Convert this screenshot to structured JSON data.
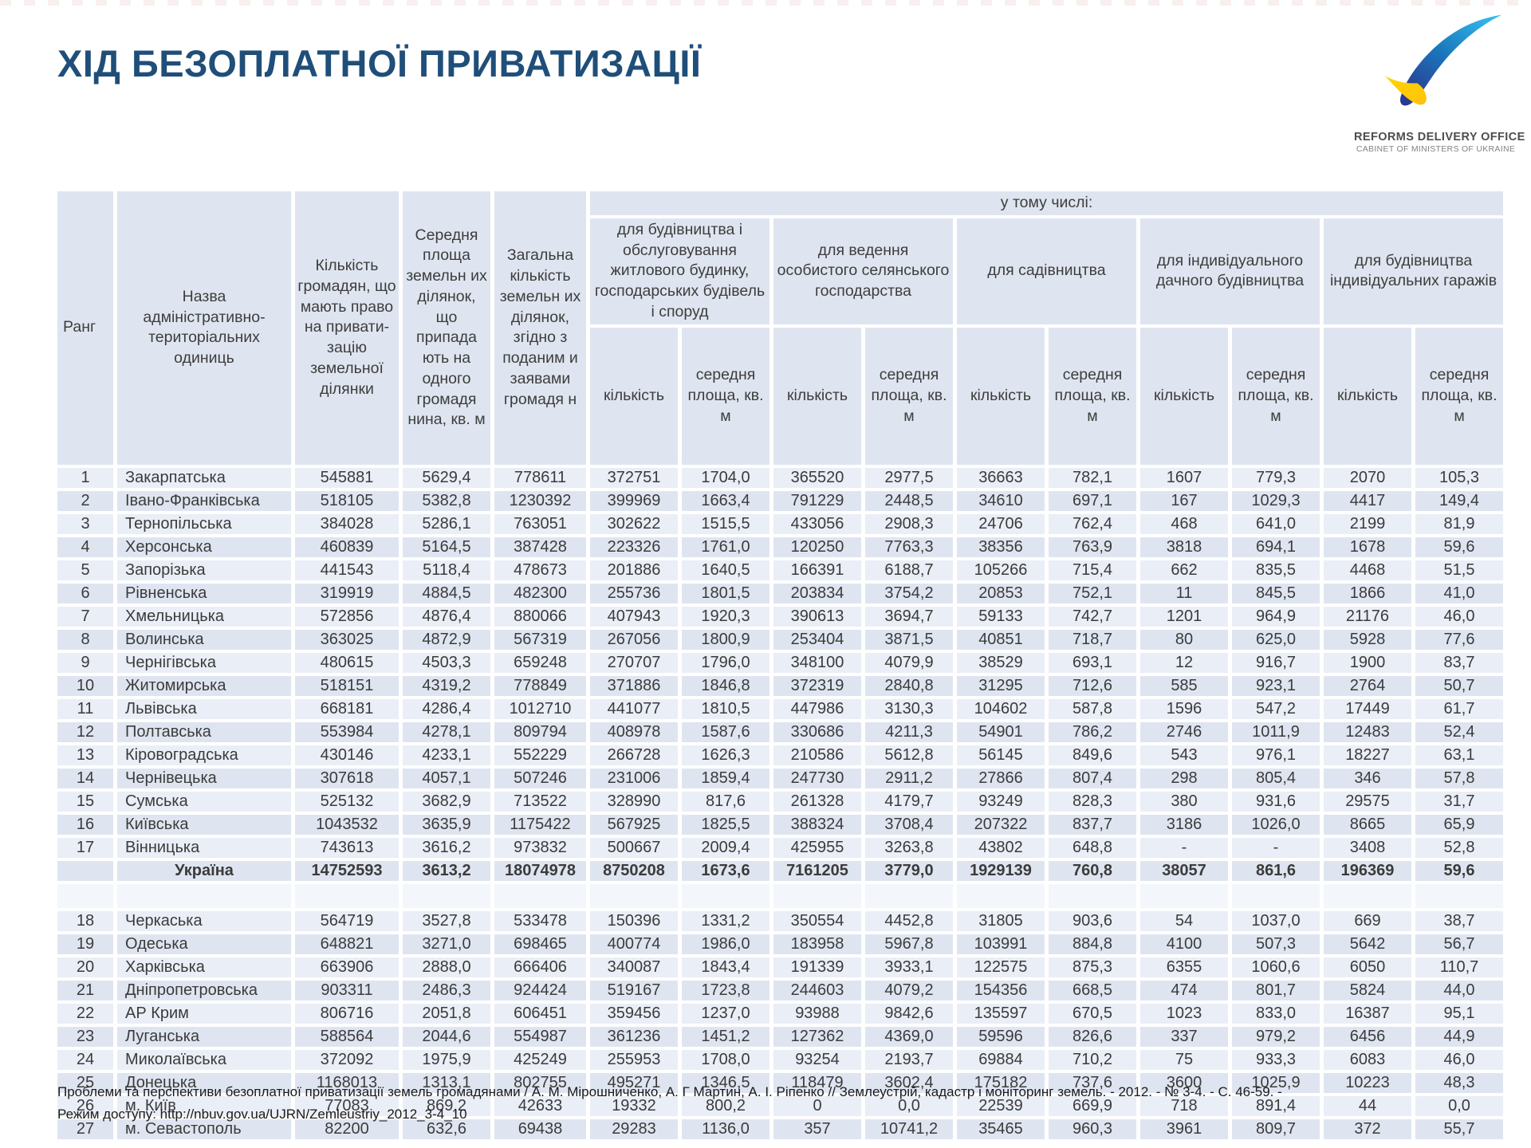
{
  "page": {
    "title": "ХІД БЕЗОПЛАТНОЇ ПРИВАТИЗАЦІЇ"
  },
  "theme": {
    "title_color": "#1f4e79",
    "cell_bg": "#eaeef6",
    "cell_bg_alt": "#dfe5f0",
    "logo_blue_top": "#36c3f2",
    "logo_blue_bottom": "#2b3990",
    "logo_yellow": "#ffd500"
  },
  "logo": {
    "line1": "REFORMS DELIVERY OFFICE",
    "line2": "CABINET OF MINISTERS OF UKRAINE",
    "icon": "swoosh-check-icon"
  },
  "table": {
    "headers": {
      "rank": "Ранг",
      "name": "Назва адміністративно-територіальних одиниць",
      "citizens": "Кількість громадян, що мають право на привати-зацію земельної ділянки",
      "avg_area": "Середня площа земельн их ділянок, що припада ють на одного громадя нина, кв. м",
      "total_parcels": "Загальна кількість земельн их ділянок, згідно з поданим и заявами громадя н",
      "including": "у тому числі:",
      "groups": [
        "для будівництва і обслуговування житлового будинку, господарських будівель і споруд",
        "для ведення особистого селянського господарства",
        "для садівництва",
        "для індивідуального дачного будівництва",
        "для будівництва індивідуальних гаражів"
      ],
      "sub_count": "кількість",
      "sub_area": "середня площа, кв. м"
    },
    "rows": [
      {
        "rank": "1",
        "name": "Закарпатська",
        "values": [
          "545881",
          "5629,4",
          "778611",
          "372751",
          "1704,0",
          "365520",
          "2977,5",
          "36663",
          "782,1",
          "1607",
          "779,3",
          "2070",
          "105,3"
        ]
      },
      {
        "rank": "2",
        "name": "Івано-Франківська",
        "values": [
          "518105",
          "5382,8",
          "1230392",
          "399969",
          "1663,4",
          "791229",
          "2448,5",
          "34610",
          "697,1",
          "167",
          "1029,3",
          "4417",
          "149,4"
        ]
      },
      {
        "rank": "3",
        "name": "Тернопільська",
        "values": [
          "384028",
          "5286,1",
          "763051",
          "302622",
          "1515,5",
          "433056",
          "2908,3",
          "24706",
          "762,4",
          "468",
          "641,0",
          "2199",
          "81,9"
        ]
      },
      {
        "rank": "4",
        "name": "Херсонська",
        "values": [
          "460839",
          "5164,5",
          "387428",
          "223326",
          "1761,0",
          "120250",
          "7763,3",
          "38356",
          "763,9",
          "3818",
          "694,1",
          "1678",
          "59,6"
        ]
      },
      {
        "rank": "5",
        "name": "Запорізька",
        "values": [
          "441543",
          "5118,4",
          "478673",
          "201886",
          "1640,5",
          "166391",
          "6188,7",
          "105266",
          "715,4",
          "662",
          "835,5",
          "4468",
          "51,5"
        ]
      },
      {
        "rank": "6",
        "name": "Рівненська",
        "values": [
          "319919",
          "4884,5",
          "482300",
          "255736",
          "1801,5",
          "203834",
          "3754,2",
          "20853",
          "752,1",
          "11",
          "845,5",
          "1866",
          "41,0"
        ]
      },
      {
        "rank": "7",
        "name": "Хмельницька",
        "values": [
          "572856",
          "4876,4",
          "880066",
          "407943",
          "1920,3",
          "390613",
          "3694,7",
          "59133",
          "742,7",
          "1201",
          "964,9",
          "21176",
          "46,0"
        ]
      },
      {
        "rank": "8",
        "name": "Волинська",
        "values": [
          "363025",
          "4872,9",
          "567319",
          "267056",
          "1800,9",
          "253404",
          "3871,5",
          "40851",
          "718,7",
          "80",
          "625,0",
          "5928",
          "77,6"
        ]
      },
      {
        "rank": "9",
        "name": "Чернігівська",
        "values": [
          "480615",
          "4503,3",
          "659248",
          "270707",
          "1796,0",
          "348100",
          "4079,9",
          "38529",
          "693,1",
          "12",
          "916,7",
          "1900",
          "83,7"
        ]
      },
      {
        "rank": "10",
        "name": "Житомирська",
        "values": [
          "518151",
          "4319,2",
          "778849",
          "371886",
          "1846,8",
          "372319",
          "2840,8",
          "31295",
          "712,6",
          "585",
          "923,1",
          "2764",
          "50,7"
        ]
      },
      {
        "rank": "11",
        "name": "Львівська",
        "values": [
          "668181",
          "4286,4",
          "1012710",
          "441077",
          "1810,5",
          "447986",
          "3130,3",
          "104602",
          "587,8",
          "1596",
          "547,2",
          "17449",
          "61,7"
        ]
      },
      {
        "rank": "12",
        "name": "Полтавська",
        "values": [
          "553984",
          "4278,1",
          "809794",
          "408978",
          "1587,6",
          "330686",
          "4211,3",
          "54901",
          "786,2",
          "2746",
          "1011,9",
          "12483",
          "52,4"
        ]
      },
      {
        "rank": "13",
        "name": "Кіровоградська",
        "values": [
          "430146",
          "4233,1",
          "552229",
          "266728",
          "1626,3",
          "210586",
          "5612,8",
          "56145",
          "849,6",
          "543",
          "976,1",
          "18227",
          "63,1"
        ]
      },
      {
        "rank": "14",
        "name": "Чернівецька",
        "values": [
          "307618",
          "4057,1",
          "507246",
          "231006",
          "1859,4",
          "247730",
          "2911,2",
          "27866",
          "807,4",
          "298",
          "805,4",
          "346",
          "57,8"
        ]
      },
      {
        "rank": "15",
        "name": "Сумська",
        "values": [
          "525132",
          "3682,9",
          "713522",
          "328990",
          "817,6",
          "261328",
          "4179,7",
          "93249",
          "828,3",
          "380",
          "931,6",
          "29575",
          "31,7"
        ]
      },
      {
        "rank": "16",
        "name": "Київська",
        "values": [
          "1043532",
          "3635,9",
          "1175422",
          "567925",
          "1825,5",
          "388324",
          "3708,4",
          "207322",
          "837,7",
          "3186",
          "1026,0",
          "8665",
          "65,9"
        ]
      },
      {
        "rank": "17",
        "name": "Вінницька",
        "values": [
          "743613",
          "3616,2",
          "973832",
          "500667",
          "2009,4",
          "425955",
          "3263,8",
          "43802",
          "648,8",
          "-",
          "-",
          "3408",
          "52,8"
        ]
      },
      {
        "rank": "",
        "name": "Україна",
        "bold": true,
        "values": [
          "14752593",
          "3613,2",
          "18074978",
          "8750208",
          "1673,6",
          "7161205",
          "3779,0",
          "1929139",
          "760,8",
          "38057",
          "861,6",
          "196369",
          "59,6"
        ]
      },
      {
        "rank": "18",
        "name": "Черкаська",
        "values": [
          "564719",
          "3527,8",
          "533478",
          "150396",
          "1331,2",
          "350554",
          "4452,8",
          "31805",
          "903,6",
          "54",
          "1037,0",
          "669",
          "38,7"
        ]
      },
      {
        "rank": "19",
        "name": "Одеська",
        "values": [
          "648821",
          "3271,0",
          "698465",
          "400774",
          "1986,0",
          "183958",
          "5967,8",
          "103991",
          "884,8",
          "4100",
          "507,3",
          "5642",
          "56,7"
        ]
      },
      {
        "rank": "20",
        "name": "Харківська",
        "values": [
          "663906",
          "2888,0",
          "666406",
          "340087",
          "1843,4",
          "191339",
          "3933,1",
          "122575",
          "875,3",
          "6355",
          "1060,6",
          "6050",
          "110,7"
        ]
      },
      {
        "rank": "21",
        "name": "Дніпропетровська",
        "values": [
          "903311",
          "2486,3",
          "924424",
          "519167",
          "1723,8",
          "244603",
          "4079,2",
          "154356",
          "668,5",
          "474",
          "801,7",
          "5824",
          "44,0"
        ]
      },
      {
        "rank": "22",
        "name": "АР Крим",
        "values": [
          "806716",
          "2051,8",
          "606451",
          "359456",
          "1237,0",
          "93988",
          "9842,6",
          "135597",
          "670,5",
          "1023",
          "833,0",
          "16387",
          "95,1"
        ]
      },
      {
        "rank": "23",
        "name": "Луганська",
        "values": [
          "588564",
          "2044,6",
          "554987",
          "361236",
          "1451,2",
          "127362",
          "4369,0",
          "59596",
          "826,6",
          "337",
          "979,2",
          "6456",
          "44,9"
        ]
      },
      {
        "rank": "24",
        "name": "Миколаївська",
        "values": [
          "372092",
          "1975,9",
          "425249",
          "255953",
          "1708,0",
          "93254",
          "2193,7",
          "69884",
          "710,2",
          "75",
          "933,3",
          "6083",
          "46,0"
        ]
      },
      {
        "rank": "25",
        "name": "Донецька",
        "values": [
          "1168013",
          "1313,1",
          "802755",
          "495271",
          "1346,5",
          "118479",
          "3602,4",
          "175182",
          "737,6",
          "3600",
          "1025,9",
          "10223",
          "48,3"
        ]
      },
      {
        "rank": "26",
        "name": "м. Київ",
        "values": [
          "77083",
          "869,2",
          "42633",
          "19332",
          "800,2",
          "0",
          "0,0",
          "22539",
          "669,9",
          "718",
          "891,4",
          "44",
          "0,0"
        ]
      },
      {
        "rank": "27",
        "name": "м. Севастополь",
        "values": [
          "82200",
          "632,6",
          "69438",
          "29283",
          "1136,0",
          "357",
          "10741,2",
          "35465",
          "960,3",
          "3961",
          "809,7",
          "372",
          "55,7"
        ]
      }
    ]
  },
  "footer": {
    "line1": "Проблеми та перспективи безоплатної приватизації земель громадянами / А. М. Мірошниченко, А. Г Мартин, А. І. Ріпенко // Землеустрій, кадастр і моніторинг земель. - 2012. - № 3-4. - С. 46-59. -",
    "line2": "Режим доступу: http://nbuv.gov.ua/UJRN/Zemleustriy_2012_3-4_10"
  }
}
